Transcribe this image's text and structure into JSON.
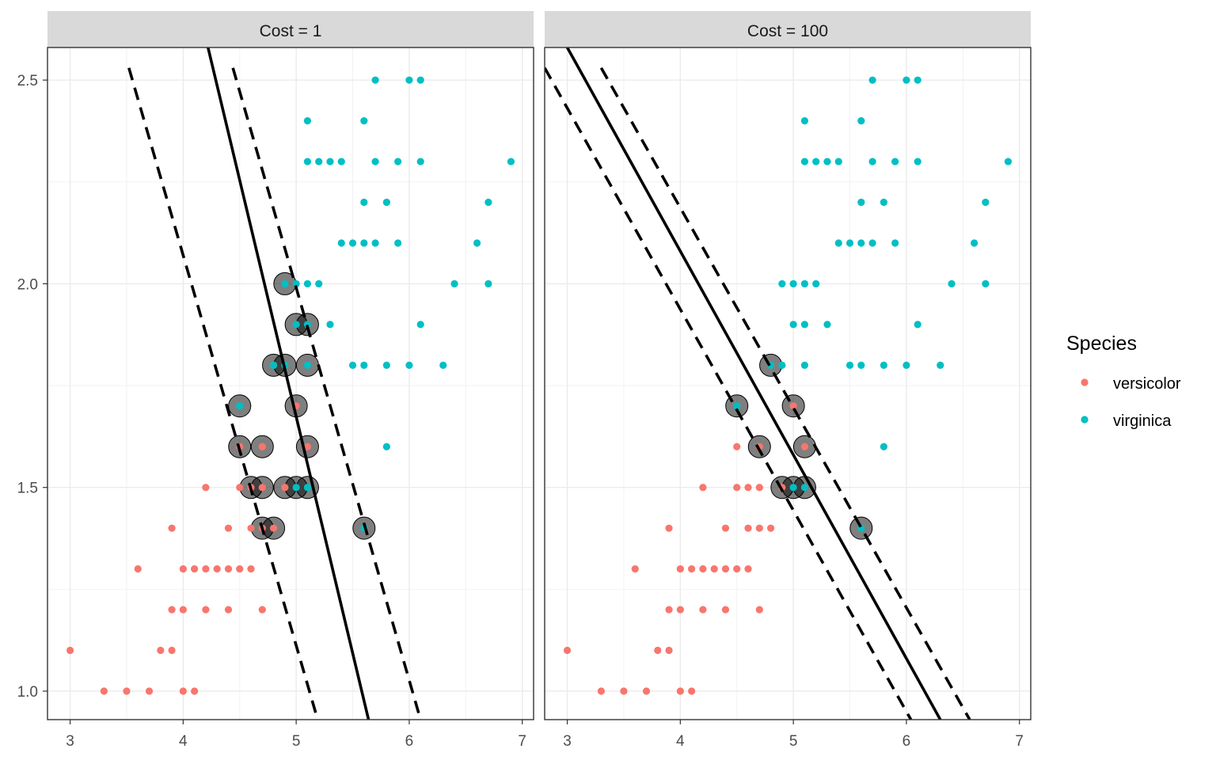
{
  "chart_data": {
    "type": "scatter",
    "title": "",
    "xlabel": "",
    "ylabel": "",
    "xlim": [
      2.8,
      7.1
    ],
    "ylim": [
      0.93,
      2.58
    ],
    "x_ticks": [
      "3",
      "4",
      "5",
      "6",
      "7"
    ],
    "y_ticks": [
      "1.0",
      "1.5",
      "2.0",
      "2.5"
    ],
    "grid": true,
    "legend": {
      "title": "Species",
      "position": "right",
      "entries": [
        {
          "name": "versicolor",
          "color": "#F8766D"
        },
        {
          "name": "virginica",
          "color": "#00BFC4"
        }
      ]
    },
    "series": [
      {
        "name": "versicolor",
        "color": "#F8766D",
        "points": [
          [
            3.0,
            1.1
          ],
          [
            3.3,
            1.0
          ],
          [
            3.5,
            1.0
          ],
          [
            3.7,
            1.0
          ],
          [
            4.0,
            1.0
          ],
          [
            4.1,
            1.0
          ],
          [
            3.8,
            1.1
          ],
          [
            3.9,
            1.1
          ],
          [
            3.9,
            1.2
          ],
          [
            4.0,
            1.2
          ],
          [
            4.2,
            1.2
          ],
          [
            4.4,
            1.2
          ],
          [
            4.7,
            1.2
          ],
          [
            3.6,
            1.3
          ],
          [
            4.0,
            1.3
          ],
          [
            4.1,
            1.3
          ],
          [
            4.2,
            1.3
          ],
          [
            4.3,
            1.3
          ],
          [
            4.4,
            1.3
          ],
          [
            4.5,
            1.3
          ],
          [
            4.6,
            1.3
          ],
          [
            3.9,
            1.4
          ],
          [
            4.4,
            1.4
          ],
          [
            4.6,
            1.4
          ],
          [
            4.7,
            1.4
          ],
          [
            4.8,
            1.4
          ],
          [
            4.2,
            1.5
          ],
          [
            4.5,
            1.5
          ],
          [
            4.6,
            1.5
          ],
          [
            4.7,
            1.5
          ],
          [
            4.9,
            1.5
          ],
          [
            4.5,
            1.6
          ],
          [
            4.7,
            1.6
          ],
          [
            5.1,
            1.6
          ],
          [
            5.0,
            1.7
          ],
          [
            4.8,
            1.8
          ]
        ]
      },
      {
        "name": "virginica",
        "color": "#00BFC4",
        "points": [
          [
            5.0,
            1.5
          ],
          [
            5.1,
            1.5
          ],
          [
            5.6,
            1.4
          ],
          [
            4.5,
            1.7
          ],
          [
            5.8,
            1.6
          ],
          [
            4.8,
            1.8
          ],
          [
            4.9,
            1.8
          ],
          [
            5.1,
            1.8
          ],
          [
            5.5,
            1.8
          ],
          [
            5.6,
            1.8
          ],
          [
            5.8,
            1.8
          ],
          [
            6.0,
            1.8
          ],
          [
            6.3,
            1.8
          ],
          [
            5.0,
            1.9
          ],
          [
            5.1,
            1.9
          ],
          [
            5.3,
            1.9
          ],
          [
            6.1,
            1.9
          ],
          [
            4.9,
            2.0
          ],
          [
            5.0,
            2.0
          ],
          [
            5.1,
            2.0
          ],
          [
            5.2,
            2.0
          ],
          [
            6.4,
            2.0
          ],
          [
            6.7,
            2.0
          ],
          [
            5.4,
            2.1
          ],
          [
            5.5,
            2.1
          ],
          [
            5.6,
            2.1
          ],
          [
            5.7,
            2.1
          ],
          [
            5.9,
            2.1
          ],
          [
            6.6,
            2.1
          ],
          [
            5.6,
            2.2
          ],
          [
            5.8,
            2.2
          ],
          [
            6.7,
            2.2
          ],
          [
            5.1,
            2.3
          ],
          [
            5.2,
            2.3
          ],
          [
            5.3,
            2.3
          ],
          [
            5.4,
            2.3
          ],
          [
            5.7,
            2.3
          ],
          [
            5.9,
            2.3
          ],
          [
            6.1,
            2.3
          ],
          [
            6.9,
            2.3
          ],
          [
            5.1,
            2.4
          ],
          [
            5.6,
            2.4
          ],
          [
            5.7,
            2.5
          ],
          [
            6.0,
            2.5
          ],
          [
            6.1,
            2.5
          ]
        ]
      }
    ],
    "panels": [
      {
        "strip": "Cost = 1",
        "support_vectors": [
          [
            4.9,
            2.0
          ],
          [
            5.0,
            1.9
          ],
          [
            5.1,
            1.9
          ],
          [
            4.8,
            1.8
          ],
          [
            4.9,
            1.8
          ],
          [
            5.1,
            1.8
          ],
          [
            4.5,
            1.7
          ],
          [
            5.0,
            1.7
          ],
          [
            4.5,
            1.6
          ],
          [
            4.7,
            1.6
          ],
          [
            5.1,
            1.6
          ],
          [
            4.6,
            1.5
          ],
          [
            4.7,
            1.5
          ],
          [
            4.9,
            1.5
          ],
          [
            5.0,
            1.5
          ],
          [
            5.1,
            1.5
          ],
          [
            4.7,
            1.4
          ],
          [
            4.8,
            1.4
          ],
          [
            5.6,
            1.4
          ]
        ],
        "decision_boundary": [
          [
            4.22,
            2.58
          ],
          [
            5.64,
            0.93
          ]
        ],
        "margin_lines": [
          [
            [
              3.52,
              2.53
            ],
            [
              5.19,
              0.93
            ]
          ],
          [
            [
              4.44,
              2.53
            ],
            [
              6.1,
              0.93
            ]
          ]
        ]
      },
      {
        "strip": "Cost = 100",
        "support_vectors": [
          [
            4.8,
            1.8
          ],
          [
            4.5,
            1.7
          ],
          [
            5.0,
            1.7
          ],
          [
            4.7,
            1.6
          ],
          [
            5.1,
            1.6
          ],
          [
            4.9,
            1.5
          ],
          [
            5.0,
            1.5
          ],
          [
            5.1,
            1.5
          ],
          [
            5.6,
            1.4
          ]
        ],
        "decision_boundary": [
          [
            3.0,
            2.58
          ],
          [
            6.3,
            0.93
          ]
        ],
        "margin_lines": [
          [
            [
              2.8,
              2.53
            ],
            [
              6.04,
              0.93
            ]
          ],
          [
            [
              3.3,
              2.53
            ],
            [
              6.56,
              0.93
            ]
          ]
        ]
      }
    ]
  }
}
